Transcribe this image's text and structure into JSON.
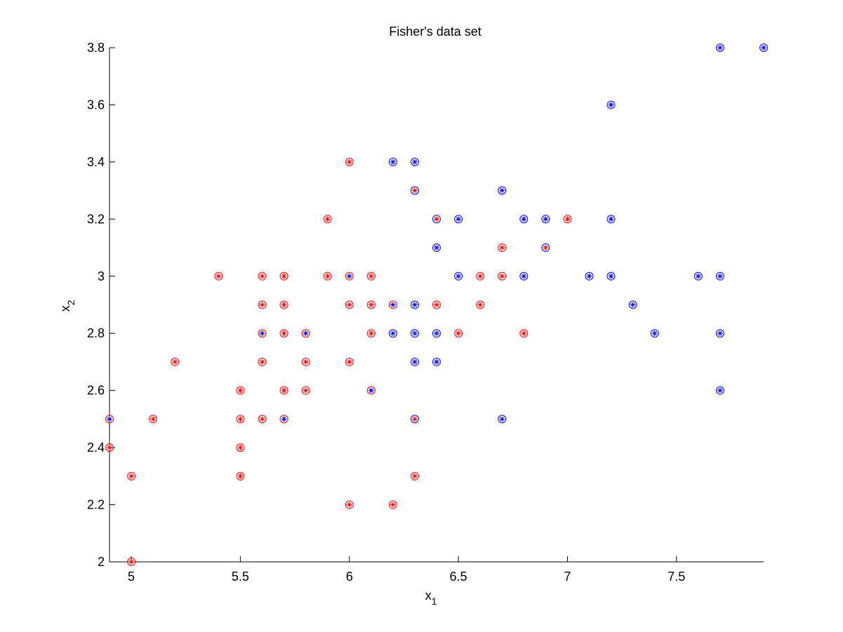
{
  "chart_data": {
    "type": "scatter",
    "title": "Fisher's data set",
    "xlabel": "x",
    "xlabel_sub": "1",
    "ylabel": "x",
    "ylabel_sub": "2",
    "xlim": [
      4.9,
      7.9
    ],
    "ylim": [
      2.0,
      3.8
    ],
    "xticks": [
      5,
      5.5,
      6,
      6.5,
      7,
      7.5
    ],
    "xtick_labels": [
      "5",
      "5.5",
      "6",
      "6.5",
      "7",
      "7.5"
    ],
    "yticks": [
      2,
      2.2,
      2.4,
      2.6,
      2.8,
      3,
      3.2,
      3.4,
      3.6,
      3.8
    ],
    "ytick_labels": [
      "2",
      "2.2",
      "2.4",
      "2.6",
      "2.8",
      "3",
      "3.2",
      "3.4",
      "3.6",
      "3.8"
    ],
    "grid": false,
    "marker_outer": "circle",
    "marker_inner": "asterisk",
    "colors": {
      "red": "#ff0000",
      "blue": "#0000ff"
    },
    "points": [
      {
        "x": 4.9,
        "y": 2.5,
        "circle": "red",
        "star": "blue"
      },
      {
        "x": 4.9,
        "y": 2.4,
        "circle": "red",
        "star": "red"
      },
      {
        "x": 5.0,
        "y": 2.3,
        "circle": "red",
        "star": "red"
      },
      {
        "x": 5.0,
        "y": 2.0,
        "circle": "red",
        "star": "red"
      },
      {
        "x": 5.1,
        "y": 2.5,
        "circle": "red",
        "star": "red"
      },
      {
        "x": 5.2,
        "y": 2.7,
        "circle": "red",
        "star": "red"
      },
      {
        "x": 5.4,
        "y": 3.0,
        "circle": "red",
        "star": "red"
      },
      {
        "x": 5.5,
        "y": 2.6,
        "circle": "red",
        "star": "red"
      },
      {
        "x": 5.5,
        "y": 2.5,
        "circle": "red",
        "star": "red"
      },
      {
        "x": 5.5,
        "y": 2.4,
        "circle": "red",
        "star": "red"
      },
      {
        "x": 5.5,
        "y": 2.3,
        "circle": "red",
        "star": "red"
      },
      {
        "x": 5.6,
        "y": 3.0,
        "circle": "red",
        "star": "red"
      },
      {
        "x": 5.6,
        "y": 2.9,
        "circle": "red",
        "star": "red"
      },
      {
        "x": 5.6,
        "y": 2.8,
        "circle": "red",
        "star": "blue"
      },
      {
        "x": 5.6,
        "y": 2.7,
        "circle": "red",
        "star": "red"
      },
      {
        "x": 5.6,
        "y": 2.5,
        "circle": "red",
        "star": "red"
      },
      {
        "x": 5.7,
        "y": 3.0,
        "circle": "red",
        "star": "red"
      },
      {
        "x": 5.7,
        "y": 2.9,
        "circle": "red",
        "star": "red"
      },
      {
        "x": 5.7,
        "y": 2.8,
        "circle": "red",
        "star": "red"
      },
      {
        "x": 5.7,
        "y": 2.6,
        "circle": "red",
        "star": "red"
      },
      {
        "x": 5.7,
        "y": 2.5,
        "circle": "red",
        "star": "blue"
      },
      {
        "x": 5.8,
        "y": 2.8,
        "circle": "red",
        "star": "blue"
      },
      {
        "x": 5.8,
        "y": 2.7,
        "circle": "red",
        "star": "red"
      },
      {
        "x": 5.8,
        "y": 2.6,
        "circle": "red",
        "star": "red"
      },
      {
        "x": 5.9,
        "y": 3.2,
        "circle": "red",
        "star": "red"
      },
      {
        "x": 5.9,
        "y": 3.0,
        "circle": "red",
        "star": "red"
      },
      {
        "x": 6.0,
        "y": 3.4,
        "circle": "red",
        "star": "red"
      },
      {
        "x": 6.0,
        "y": 3.0,
        "circle": "red",
        "star": "blue"
      },
      {
        "x": 6.0,
        "y": 2.9,
        "circle": "red",
        "star": "red"
      },
      {
        "x": 6.0,
        "y": 2.7,
        "circle": "red",
        "star": "red"
      },
      {
        "x": 6.0,
        "y": 2.2,
        "circle": "red",
        "star": "red"
      },
      {
        "x": 6.1,
        "y": 3.0,
        "circle": "red",
        "star": "red"
      },
      {
        "x": 6.1,
        "y": 2.9,
        "circle": "red",
        "star": "red"
      },
      {
        "x": 6.1,
        "y": 2.8,
        "circle": "red",
        "star": "red"
      },
      {
        "x": 6.1,
        "y": 2.6,
        "circle": "red",
        "star": "blue"
      },
      {
        "x": 6.2,
        "y": 3.4,
        "circle": "blue",
        "star": "blue"
      },
      {
        "x": 6.2,
        "y": 2.9,
        "circle": "red",
        "star": "blue"
      },
      {
        "x": 6.2,
        "y": 2.8,
        "circle": "blue",
        "star": "blue"
      },
      {
        "x": 6.2,
        "y": 2.2,
        "circle": "red",
        "star": "red"
      },
      {
        "x": 6.3,
        "y": 3.4,
        "circle": "blue",
        "star": "blue"
      },
      {
        "x": 6.3,
        "y": 3.3,
        "circle": "blue",
        "star": "red"
      },
      {
        "x": 6.3,
        "y": 2.9,
        "circle": "blue",
        "star": "blue"
      },
      {
        "x": 6.3,
        "y": 2.8,
        "circle": "blue",
        "star": "blue"
      },
      {
        "x": 6.3,
        "y": 2.7,
        "circle": "blue",
        "star": "blue"
      },
      {
        "x": 6.3,
        "y": 2.5,
        "circle": "blue",
        "star": "red"
      },
      {
        "x": 6.3,
        "y": 2.3,
        "circle": "red",
        "star": "red"
      },
      {
        "x": 6.4,
        "y": 3.2,
        "circle": "blue",
        "star": "red"
      },
      {
        "x": 6.4,
        "y": 3.1,
        "circle": "blue",
        "star": "blue"
      },
      {
        "x": 6.4,
        "y": 2.9,
        "circle": "red",
        "star": "red"
      },
      {
        "x": 6.4,
        "y": 2.8,
        "circle": "blue",
        "star": "blue"
      },
      {
        "x": 6.4,
        "y": 2.7,
        "circle": "blue",
        "star": "blue"
      },
      {
        "x": 6.5,
        "y": 3.2,
        "circle": "blue",
        "star": "blue"
      },
      {
        "x": 6.5,
        "y": 3.0,
        "circle": "blue",
        "star": "blue"
      },
      {
        "x": 6.5,
        "y": 2.8,
        "circle": "red",
        "star": "red"
      },
      {
        "x": 6.6,
        "y": 3.0,
        "circle": "red",
        "star": "red"
      },
      {
        "x": 6.6,
        "y": 2.9,
        "circle": "red",
        "star": "red"
      },
      {
        "x": 6.7,
        "y": 3.3,
        "circle": "blue",
        "star": "blue"
      },
      {
        "x": 6.7,
        "y": 3.1,
        "circle": "red",
        "star": "red"
      },
      {
        "x": 6.7,
        "y": 3.0,
        "circle": "red",
        "star": "red"
      },
      {
        "x": 6.7,
        "y": 2.5,
        "circle": "blue",
        "star": "blue"
      },
      {
        "x": 6.8,
        "y": 3.2,
        "circle": "blue",
        "star": "blue"
      },
      {
        "x": 6.8,
        "y": 3.0,
        "circle": "blue",
        "star": "blue"
      },
      {
        "x": 6.8,
        "y": 2.8,
        "circle": "red",
        "star": "red"
      },
      {
        "x": 6.9,
        "y": 3.2,
        "circle": "blue",
        "star": "blue"
      },
      {
        "x": 6.9,
        "y": 3.1,
        "circle": "blue",
        "star": "red"
      },
      {
        "x": 7.0,
        "y": 3.2,
        "circle": "red",
        "star": "red"
      },
      {
        "x": 7.1,
        "y": 3.0,
        "circle": "blue",
        "star": "blue"
      },
      {
        "x": 7.2,
        "y": 3.6,
        "circle": "blue",
        "star": "blue"
      },
      {
        "x": 7.2,
        "y": 3.2,
        "circle": "blue",
        "star": "blue"
      },
      {
        "x": 7.2,
        "y": 3.0,
        "circle": "blue",
        "star": "blue"
      },
      {
        "x": 7.3,
        "y": 2.9,
        "circle": "blue",
        "star": "blue"
      },
      {
        "x": 7.4,
        "y": 2.8,
        "circle": "blue",
        "star": "blue"
      },
      {
        "x": 7.6,
        "y": 3.0,
        "circle": "blue",
        "star": "blue"
      },
      {
        "x": 7.7,
        "y": 3.8,
        "circle": "blue",
        "star": "blue"
      },
      {
        "x": 7.7,
        "y": 3.0,
        "circle": "blue",
        "star": "blue"
      },
      {
        "x": 7.7,
        "y": 2.8,
        "circle": "blue",
        "star": "blue"
      },
      {
        "x": 7.7,
        "y": 2.6,
        "circle": "blue",
        "star": "blue"
      },
      {
        "x": 7.9,
        "y": 3.8,
        "circle": "blue",
        "star": "blue"
      }
    ]
  }
}
